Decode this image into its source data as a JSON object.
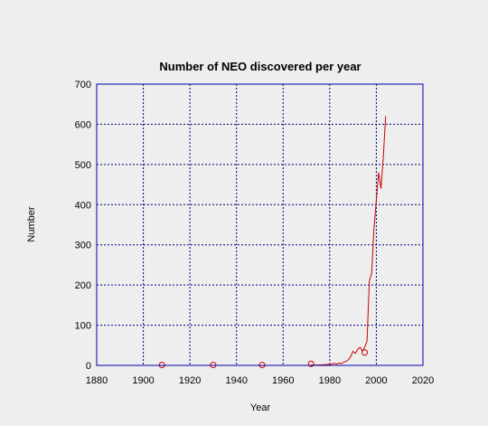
{
  "chart_data": {
    "type": "line",
    "title": "Number of NEO discovered per year",
    "xlabel": "Year",
    "ylabel": "Number",
    "xlim": [
      1880,
      2020
    ],
    "ylim": [
      0,
      700
    ],
    "xticks": [
      1880,
      1900,
      1920,
      1940,
      1960,
      1980,
      2000,
      2020
    ],
    "yticks": [
      0,
      100,
      200,
      300,
      400,
      500,
      600,
      700
    ],
    "grid": true,
    "colors": {
      "frame": "#0000aa",
      "grid": "#000080",
      "line": "#cc0000",
      "marker": "#cc0000",
      "background": "#eeeeee"
    },
    "series": [
      {
        "line": [
          [
            1972,
            1
          ],
          [
            1975,
            1
          ],
          [
            1978,
            2
          ],
          [
            1980,
            2
          ],
          [
            1982,
            5
          ],
          [
            1983,
            3
          ],
          [
            1984,
            6
          ],
          [
            1985,
            4
          ],
          [
            1986,
            8
          ],
          [
            1987,
            10
          ],
          [
            1988,
            14
          ],
          [
            1989,
            22
          ],
          [
            1990,
            35
          ],
          [
            1991,
            30
          ],
          [
            1992,
            40
          ],
          [
            1993,
            45
          ],
          [
            1994,
            35
          ],
          [
            1995,
            45
          ],
          [
            1996,
            60
          ],
          [
            1997,
            210
          ],
          [
            1998,
            230
          ],
          [
            1999,
            340
          ],
          [
            2000,
            410
          ],
          [
            2001,
            480
          ],
          [
            2002,
            440
          ],
          [
            2003,
            520
          ],
          [
            2004,
            620
          ]
        ],
        "markers": [
          [
            1908,
            1
          ],
          [
            1930,
            1
          ],
          [
            1951,
            1
          ],
          [
            1972,
            4
          ],
          [
            1995,
            32
          ]
        ]
      }
    ]
  }
}
